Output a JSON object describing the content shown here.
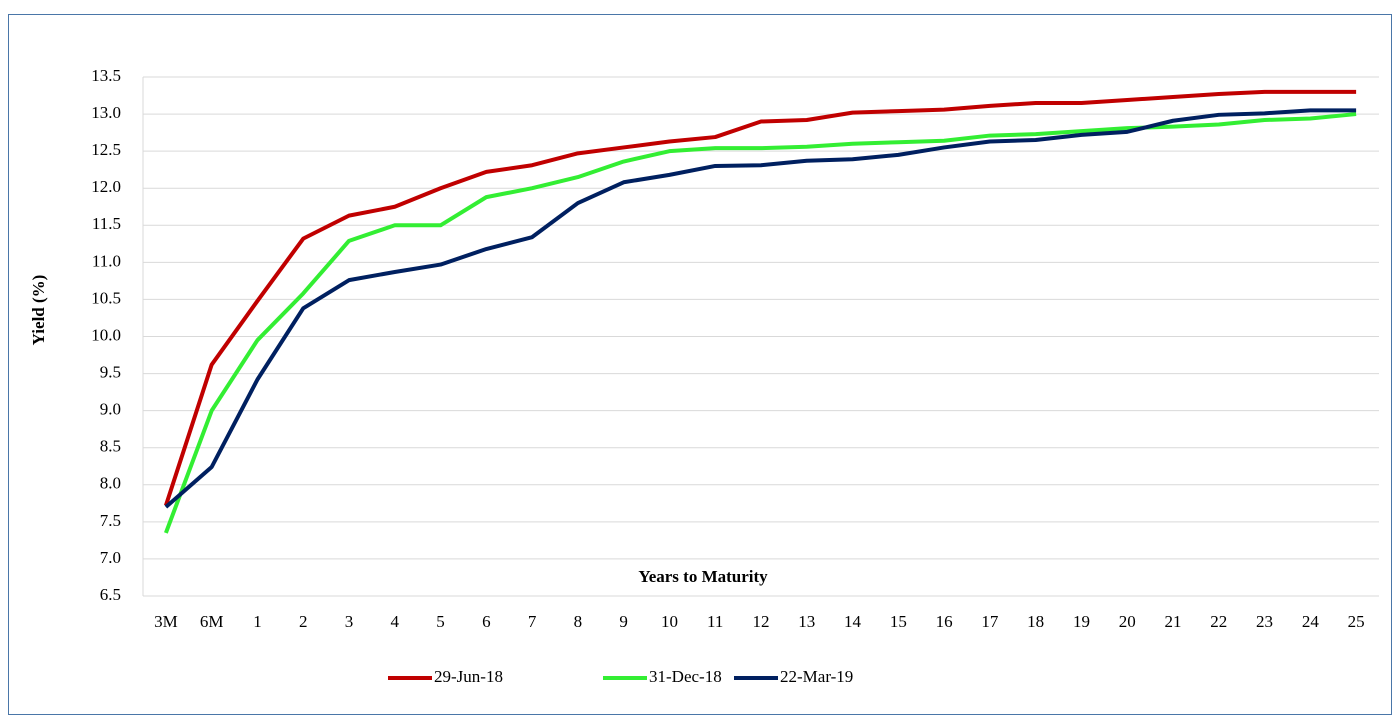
{
  "chart_data": {
    "type": "line",
    "x_label": "Years to Maturity",
    "y_label": "Yield (%)",
    "categories": [
      "3M",
      "6M",
      "1",
      "2",
      "3",
      "4",
      "5",
      "6",
      "7",
      "8",
      "9",
      "10",
      "11",
      "12",
      "13",
      "14",
      "15",
      "16",
      "17",
      "18",
      "19",
      "20",
      "21",
      "22",
      "23",
      "24",
      "25"
    ],
    "series": [
      {
        "name": "29-Jun-18",
        "color": "#c00000",
        "values": [
          7.72,
          9.62,
          10.48,
          11.32,
          11.63,
          11.75,
          12.0,
          12.22,
          12.31,
          12.47,
          12.55,
          12.63,
          12.69,
          12.9,
          12.92,
          13.02,
          13.04,
          13.06,
          13.11,
          13.15,
          13.15,
          13.19,
          13.23,
          13.27,
          13.3,
          13.3,
          13.3
        ]
      },
      {
        "name": "31-Dec-18",
        "color": "#33ee33",
        "values": [
          7.35,
          9.0,
          9.95,
          10.58,
          11.29,
          11.5,
          11.5,
          11.88,
          12.0,
          12.15,
          12.36,
          12.5,
          12.54,
          12.54,
          12.56,
          12.6,
          12.62,
          12.64,
          12.71,
          12.73,
          12.77,
          12.81,
          12.83,
          12.86,
          12.92,
          12.94,
          13.0
        ]
      },
      {
        "name": "22-Mar-19",
        "color": "#002060",
        "values": [
          7.7,
          8.24,
          9.42,
          10.38,
          10.76,
          10.87,
          10.97,
          11.18,
          11.34,
          11.8,
          12.08,
          12.18,
          12.3,
          12.31,
          12.37,
          12.39,
          12.45,
          12.55,
          12.63,
          12.65,
          12.72,
          12.76,
          12.91,
          12.99,
          13.01,
          13.05,
          13.05
        ]
      }
    ],
    "ylim": [
      6.5,
      13.5
    ],
    "yticks": [
      6.5,
      {
        "value": 7,
        "label": "7.0"
      },
      7.5,
      {
        "value": 8,
        "label": "8.0"
      },
      8.5,
      {
        "value": 9,
        "label": "9.0"
      },
      9.5,
      {
        "value": 10,
        "label": "10.0"
      },
      10.5,
      {
        "value": 11,
        "label": "11.0"
      },
      11.5,
      {
        "value": 12,
        "label": "12.0"
      },
      12.5,
      {
        "value": 13,
        "label": "13.0"
      },
      13.5
    ],
    "grid": true,
    "legend": "bottom"
  }
}
